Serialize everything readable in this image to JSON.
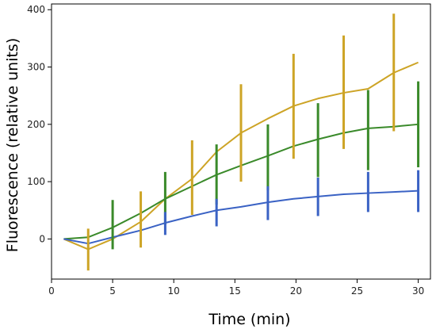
{
  "chart_data": {
    "type": "line",
    "title": "",
    "xlabel": "Time (min)",
    "ylabel": "Fluorescence (relative units)",
    "xlim": [
      0,
      31
    ],
    "ylim": [
      -70,
      410
    ],
    "xticks": [
      0,
      5,
      10,
      15,
      20,
      25,
      30
    ],
    "yticks": [
      0,
      100,
      200,
      300,
      400
    ],
    "grid": false,
    "legend": "none",
    "series": [
      {
        "color": "#cda426",
        "x": [
          1,
          3,
          5,
          7.3,
          9.3,
          11.5,
          13.5,
          15.5,
          17.7,
          19.8,
          21.8,
          23.9,
          25.9,
          28,
          30
        ],
        "y": [
          0,
          -18,
          0,
          30,
          70,
          105,
          152,
          185,
          210,
          232,
          245,
          255,
          262,
          290,
          308
        ],
        "err_x": [
          3,
          7.3,
          11.5,
          15.5,
          19.8,
          23.9,
          28
        ],
        "err_low": [
          -55,
          -15,
          42,
          100,
          140,
          157,
          188
        ],
        "err_high": [
          18,
          83,
          172,
          270,
          323,
          355,
          393
        ]
      },
      {
        "color": "#3a8a2a",
        "x": [
          1,
          3,
          5,
          7.3,
          9.3,
          11.5,
          13.5,
          15.5,
          17.7,
          19.8,
          21.8,
          23.9,
          25.9,
          28,
          30
        ],
        "y": [
          0,
          3,
          20,
          45,
          70,
          92,
          112,
          128,
          145,
          162,
          174,
          185,
          193,
          196,
          200
        ],
        "err_x": [
          5,
          9.3,
          13.5,
          17.7,
          21.8,
          25.9,
          30
        ],
        "err_low": [
          -18,
          25,
          60,
          85,
          108,
          120,
          125
        ],
        "err_high": [
          68,
          117,
          165,
          200,
          237,
          260,
          275
        ]
      },
      {
        "color": "#3a62c4",
        "x": [
          1,
          3,
          5,
          7.3,
          9.3,
          11.5,
          13.5,
          15.5,
          17.7,
          19.8,
          21.8,
          23.9,
          25.9,
          28,
          30
        ],
        "y": [
          0,
          -8,
          3,
          15,
          28,
          40,
          50,
          56,
          64,
          70,
          74,
          78,
          80,
          82,
          84
        ],
        "err_x": [
          9.3,
          13.5,
          17.7,
          21.8,
          25.9,
          30
        ],
        "err_low": [
          7,
          22,
          33,
          40,
          47,
          47
        ],
        "err_high": [
          47,
          70,
          92,
          107,
          117,
          120
        ]
      }
    ]
  }
}
